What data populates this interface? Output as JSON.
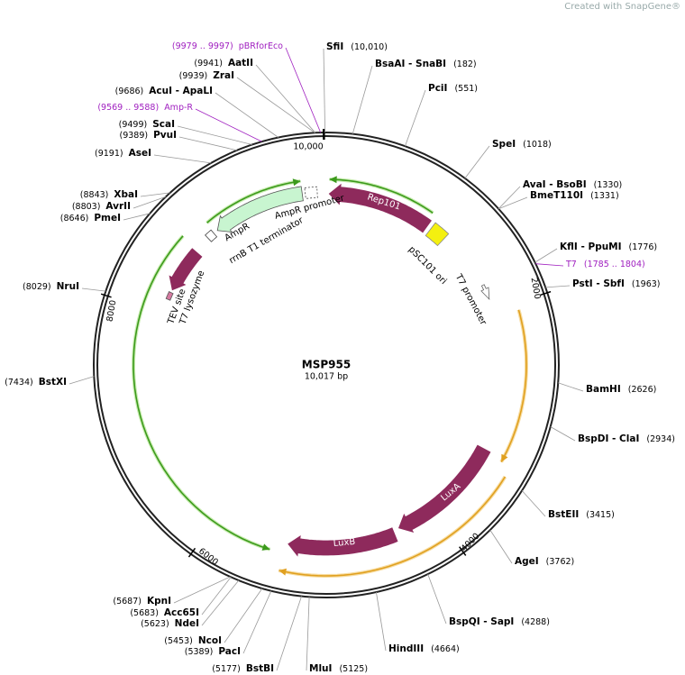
{
  "header": "Created with SnapGene®",
  "plasmid": {
    "name": "MSP955",
    "size": "10,017 bp"
  },
  "ruler": [
    "10,000",
    "2000",
    "4000",
    "6000",
    "8000"
  ],
  "sites": [
    {
      "name": "SfiI",
      "pos": "(10,010)"
    },
    {
      "name": "BsaAI - SnaBI",
      "pos": "(182)"
    },
    {
      "name": "PciI",
      "pos": "(551)"
    },
    {
      "name": "SpeI",
      "pos": "(1018)"
    },
    {
      "name": "AvaI - BsoBI",
      "pos": "(1330)"
    },
    {
      "name": "BmeT110I",
      "pos": "(1331)"
    },
    {
      "name": "KflI - PpuMI",
      "pos": "(1776)"
    },
    {
      "name": "T7",
      "pos": "(1785 .. 1804)",
      "color": "#a020c0"
    },
    {
      "name": "PstI - SbfI",
      "pos": "(1963)"
    },
    {
      "name": "BamHI",
      "pos": "(2626)"
    },
    {
      "name": "BspDI - ClaI",
      "pos": "(2934)"
    },
    {
      "name": "BstEII",
      "pos": "(3415)"
    },
    {
      "name": "AgeI",
      "pos": "(3762)"
    },
    {
      "name": "BspQI - SapI",
      "pos": "(4288)"
    },
    {
      "name": "HindIII",
      "pos": "(4664)"
    },
    {
      "name": "MluI",
      "pos": "(5125)"
    },
    {
      "name": "BstBI",
      "pos": "(5177)"
    },
    {
      "name": "PacI",
      "pos": "(5389)"
    },
    {
      "name": "NcoI",
      "pos": "(5453)"
    },
    {
      "name": "NdeI",
      "pos": "(5623)"
    },
    {
      "name": "Acc65I",
      "pos": "(5683)"
    },
    {
      "name": "KpnI",
      "pos": "(5687)"
    },
    {
      "name": "BstXI",
      "pos": "(7434)"
    },
    {
      "name": "NruI",
      "pos": "(8029)"
    },
    {
      "name": "PmeI",
      "pos": "(8646)"
    },
    {
      "name": "AvrII",
      "pos": "(8803)"
    },
    {
      "name": "XbaI",
      "pos": "(8843)"
    },
    {
      "name": "AseI",
      "pos": "(9191)"
    },
    {
      "name": "PvuI",
      "pos": "(9389)"
    },
    {
      "name": "ScaI",
      "pos": "(9499)"
    },
    {
      "name": "Amp-R",
      "pos": "(9569 .. 9588)",
      "color": "#a020c0"
    },
    {
      "name": "AcuI - ApaLI",
      "pos": "(9686)"
    },
    {
      "name": "ZraI",
      "pos": "(9939)"
    },
    {
      "name": "AatII",
      "pos": "(9941)"
    },
    {
      "name": "pBRforEco",
      "pos": "(9979 .. 9997)",
      "color": "#a020c0"
    }
  ],
  "features": [
    "Rep101",
    "pSC101 ori",
    "AmpR promoter",
    "AmpR",
    "rrnB T1 terminator",
    "TEV site",
    "T7 lysozyme",
    "T7 promoter",
    "LuxA",
    "LuxB"
  ]
}
